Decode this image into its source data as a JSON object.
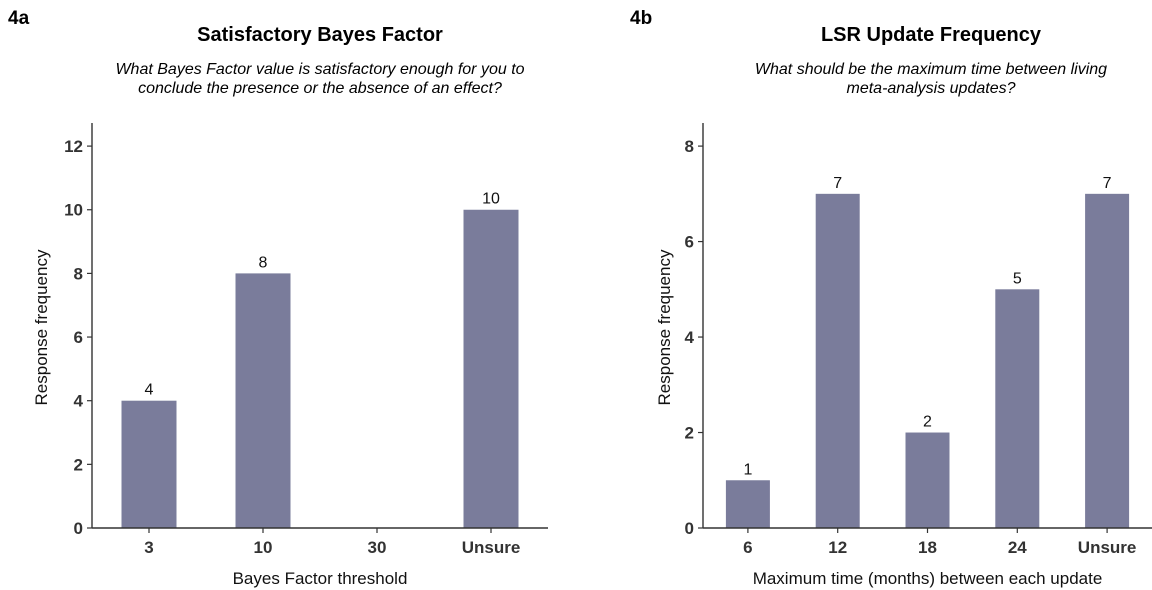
{
  "chart_data": [
    {
      "panel": "4a",
      "type": "bar",
      "title": "Satisfactory Bayes Factor",
      "subtitle_lines": [
        "What Bayes Factor value is satisfactory enough for you to",
        "conclude the presence or the absence of an effect?"
      ],
      "xlabel": "Bayes Factor threshold",
      "ylabel": "Response frequency",
      "categories": [
        "3",
        "10",
        "30",
        "Unsure"
      ],
      "values": [
        4,
        8,
        0,
        10
      ],
      "data_labels": [
        "4",
        "8",
        "",
        "10"
      ],
      "ylim": [
        0,
        12.6
      ],
      "yticks": [
        0,
        2,
        4,
        6,
        8,
        10,
        12
      ],
      "bar_color": "#7a7c9b",
      "grid": false,
      "legend": "none"
    },
    {
      "panel": "4b",
      "type": "bar",
      "title": "LSR Update Frequency",
      "subtitle_lines": [
        "What should be the maximum time between living",
        "meta-analysis updates?"
      ],
      "xlabel": "Maximum time (months) between each update",
      "ylabel": "Response frequency",
      "categories": [
        "6",
        "12",
        "18",
        "24",
        "Unsure"
      ],
      "values": [
        1,
        7,
        2,
        5,
        7
      ],
      "data_labels": [
        "1",
        "7",
        "2",
        "5",
        "7"
      ],
      "ylim": [
        0,
        8.4
      ],
      "yticks": [
        0,
        2,
        4,
        6,
        8
      ],
      "bar_color": "#7a7c9b",
      "grid": false,
      "legend": "none"
    }
  ]
}
